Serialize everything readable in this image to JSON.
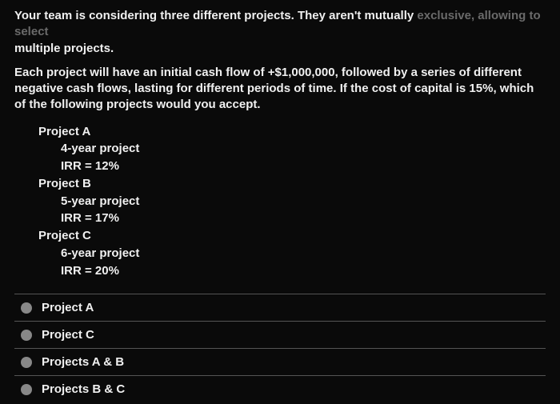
{
  "intro_main": "Your team is considering three different projects. They aren't mutually ",
  "intro_fade": "exclusive, allowing to select ",
  "intro_line2": "multiple projects.",
  "desc": "Each project will have an initial cash flow of +$1,000,000, followed by a series of different negative cash flows, lasting for different periods of time. If the cost of capital is 15%, which of the following projects would you accept.",
  "projects": {
    "a": {
      "name": "Project A",
      "duration": "4-year project",
      "irr": "IRR = 12%"
    },
    "b": {
      "name": "Project B",
      "duration": "5-year project",
      "irr": "IRR = 17%"
    },
    "c": {
      "name": "Project C",
      "duration": "6-year project",
      "irr": "IRR = 20%"
    }
  },
  "options": {
    "o1": "Project A",
    "o2": "Project C",
    "o3": "Projects A & B",
    "o4": "Projects B & C"
  },
  "colors": {
    "background": "#0a0a0a",
    "text": "#f0f0f0",
    "faded_text": "#6a6a6a",
    "divider": "#555555",
    "radio_fill": "#888888"
  }
}
